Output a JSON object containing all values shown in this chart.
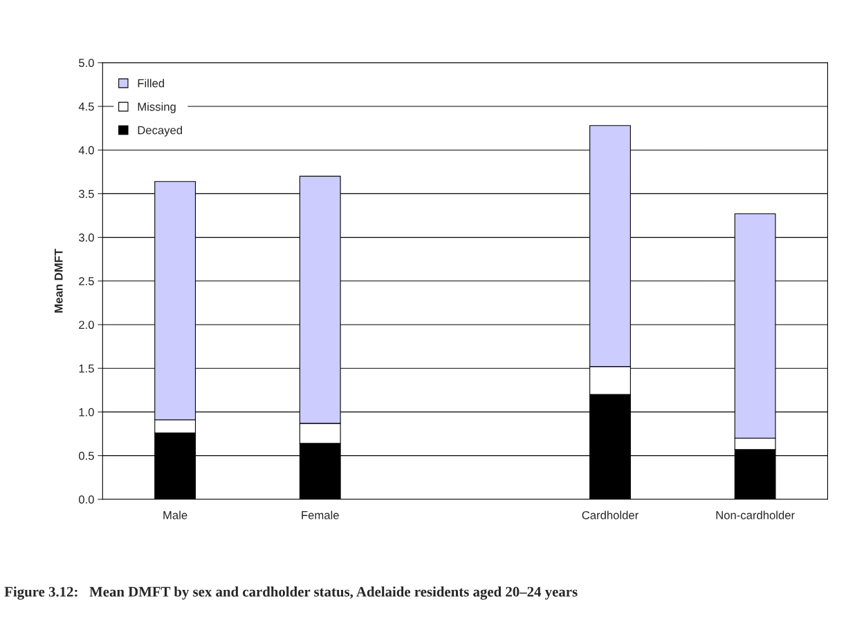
{
  "chart_data": {
    "type": "bar",
    "title": "Figure 3.12:   Mean DMFT by sex and cardholder status, Adelaide residents aged 20–24 years",
    "ylabel": "Mean DMFT",
    "categories": [
      "Male",
      "Female",
      null,
      "Cardholder",
      "Non-cardholder"
    ],
    "stacked": true,
    "series": [
      {
        "name": "Decayed",
        "color": "#000000",
        "values": [
          0.76,
          0.64,
          null,
          1.2,
          0.57
        ]
      },
      {
        "name": "Missing",
        "color": "#ffffff",
        "values": [
          0.15,
          0.23,
          null,
          0.32,
          0.13
        ]
      },
      {
        "name": "Filled",
        "color": "#ccccff",
        "values": [
          2.73,
          2.83,
          null,
          2.76,
          2.57
        ]
      }
    ],
    "ylim": [
      0,
      5
    ],
    "yticks": [
      {
        "value": 0,
        "label": "0.0"
      },
      {
        "value": 0.5,
        "label": "0.5"
      },
      {
        "value": 1,
        "label": "1.0"
      },
      {
        "value": 1.5,
        "label": "1.5"
      },
      {
        "value": 2,
        "label": "2.0"
      },
      {
        "value": 2.5,
        "label": "2.5"
      },
      {
        "value": 3,
        "label": "3.0"
      },
      {
        "value": 3.5,
        "label": "3.5"
      },
      {
        "value": 4,
        "label": "4.0"
      },
      {
        "value": 4.5,
        "label": "4.5"
      },
      {
        "value": 5,
        "label": "5.0"
      }
    ],
    "grid": "y",
    "legend": "top left"
  }
}
